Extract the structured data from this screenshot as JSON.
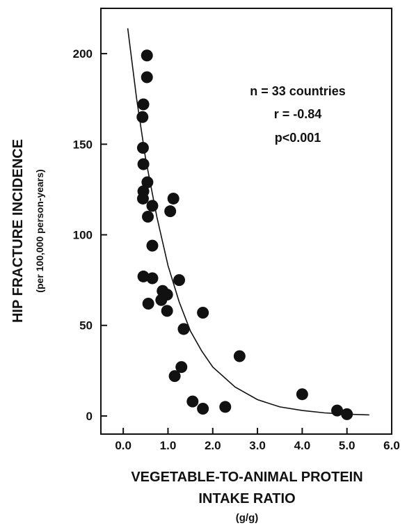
{
  "chart_data": {
    "type": "scatter",
    "ylabel": "HIP FRACTURE INCIDENCE",
    "ylabel_sub": "(per 100,000 person-years)",
    "xlabel": "VEGETABLE-TO-ANIMAL PROTEIN",
    "xlabel_line2": "INTAKE RATIO",
    "xlabel_units": "(g/g)",
    "xlim": [
      -0.5,
      6.0
    ],
    "ylim": [
      -10,
      225
    ],
    "x_ticks": [
      0.0,
      1.0,
      2.0,
      3.0,
      4.0,
      5.0,
      6.0
    ],
    "x_tick_labels": [
      "0.0",
      "1.0",
      "2.0",
      "3.0",
      "4.0",
      "5.0",
      "6.0"
    ],
    "y_ticks": [
      0,
      50,
      100,
      150,
      200
    ],
    "y_tick_labels": [
      "0",
      "50",
      "100",
      "150",
      "200"
    ],
    "grid": false,
    "annotations": [
      "n  =  33 countries",
      "r  =  -0.84",
      "p<0.001"
    ],
    "marker_color": "#111111",
    "points": [
      {
        "x": 0.53,
        "y": 199
      },
      {
        "x": 0.53,
        "y": 187
      },
      {
        "x": 0.45,
        "y": 172
      },
      {
        "x": 0.43,
        "y": 165
      },
      {
        "x": 0.44,
        "y": 148
      },
      {
        "x": 0.45,
        "y": 139
      },
      {
        "x": 0.54,
        "y": 129
      },
      {
        "x": 0.45,
        "y": 124
      },
      {
        "x": 0.44,
        "y": 120
      },
      {
        "x": 0.65,
        "y": 116
      },
      {
        "x": 0.55,
        "y": 110
      },
      {
        "x": 1.12,
        "y": 120
      },
      {
        "x": 1.05,
        "y": 113
      },
      {
        "x": 0.65,
        "y": 94
      },
      {
        "x": 0.45,
        "y": 77
      },
      {
        "x": 0.65,
        "y": 76
      },
      {
        "x": 1.25,
        "y": 75
      },
      {
        "x": 0.88,
        "y": 69
      },
      {
        "x": 0.85,
        "y": 64
      },
      {
        "x": 0.98,
        "y": 67
      },
      {
        "x": 0.56,
        "y": 62
      },
      {
        "x": 0.98,
        "y": 58
      },
      {
        "x": 1.78,
        "y": 57
      },
      {
        "x": 1.35,
        "y": 48
      },
      {
        "x": 2.6,
        "y": 33
      },
      {
        "x": 1.3,
        "y": 27
      },
      {
        "x": 1.15,
        "y": 22
      },
      {
        "x": 1.55,
        "y": 8
      },
      {
        "x": 1.78,
        "y": 4
      },
      {
        "x": 2.28,
        "y": 5
      },
      {
        "x": 4.0,
        "y": 12
      },
      {
        "x": 4.78,
        "y": 3
      },
      {
        "x": 5.0,
        "y": 1
      }
    ],
    "fit_curve": [
      {
        "x": 0.1,
        "y": 214
      },
      {
        "x": 0.3,
        "y": 175
      },
      {
        "x": 0.5,
        "y": 142
      },
      {
        "x": 0.75,
        "y": 110
      },
      {
        "x": 1.0,
        "y": 83
      },
      {
        "x": 1.25,
        "y": 63
      },
      {
        "x": 1.5,
        "y": 47
      },
      {
        "x": 1.75,
        "y": 36
      },
      {
        "x": 2.0,
        "y": 27
      },
      {
        "x": 2.5,
        "y": 16
      },
      {
        "x": 3.0,
        "y": 9
      },
      {
        "x": 3.5,
        "y": 5
      },
      {
        "x": 4.0,
        "y": 3
      },
      {
        "x": 4.5,
        "y": 1.7
      },
      {
        "x": 5.0,
        "y": 1
      },
      {
        "x": 5.5,
        "y": 0.6
      }
    ]
  }
}
